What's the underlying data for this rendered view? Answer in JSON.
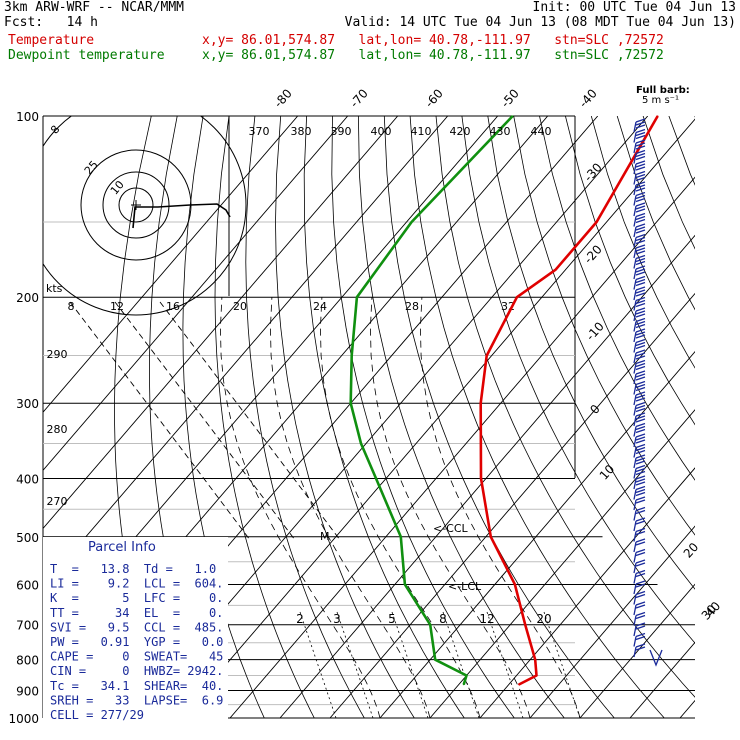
{
  "header": {
    "line1_left": "3km ARW-WRF -- NCAR/MMM",
    "line1_right": "Init: 00 UTC Tue 04 Jun 13",
    "line2_left": "Fcst:   14 h",
    "line2_right": "Valid: 14 UTC Tue 04 Jun 13 (08 MDT Tue 04 Jun 13)",
    "temp_label": "Temperature",
    "temp_info": "x,y= 86.01,574.87   lat,lon= 40.78,-111.97   stn=SLC ,72572",
    "dew_label": "Dewpoint temperature",
    "dew_info": "x,y= 86.01,574.87   lat,lon= 40.78,-111.97   stn=SLC ,72572"
  },
  "barb_legend": {
    "line1": "Full barb:",
    "line2": "5 m s⁻¹"
  },
  "parcel_info": {
    "title": "Parcel Info",
    "rows": [
      "T  =   13.8  Td =   1.0",
      "LI =    9.2  LCL =  604.",
      "K  =      5  LFC =    0.",
      "TT =     34  EL  =    0.",
      "SVI =   9.5  CCL =  485.",
      "PW =   0.91  YGP =   0.0",
      "CAPE =    0  SWEAT=   45",
      "CIN =     0  HWBZ= 2942.",
      "Tc =   34.1  SHEAR=  40.",
      "SREH =   33  LAPSE=  6.9",
      "CELL = 277/29"
    ]
  },
  "annotations": {
    "lcl1": "<-CCL",
    "lcl2": "<-LCL",
    "m_marker": "M",
    "hodo_kts": "kts"
  },
  "colors": {
    "temperature": "#e00000",
    "dewpoint": "#109010",
    "wind": "#1a2a9a"
  },
  "chart_data": {
    "type": "line",
    "subtype": "skew-T log-P",
    "pressure_levels": [
      100,
      200,
      300,
      400,
      500,
      600,
      700,
      800,
      900,
      1000
    ],
    "isotherm_top_labels": [
      "-80",
      "-70",
      "-60",
      "-50",
      "-40"
    ],
    "isotherm_right_labels": [
      "-30",
      "-20",
      "-10",
      "0",
      "10",
      "20",
      "30",
      "40"
    ],
    "theta_labels": [
      "370",
      "380",
      "390",
      "400",
      "410",
      "420",
      "430",
      "440"
    ],
    "theta_left_labels": [
      "290",
      "280",
      "270"
    ],
    "mixing_ratio_labels": [
      "2",
      "3",
      "5",
      "8",
      "12",
      "20"
    ],
    "hodograph_ring_labels": [
      "8",
      "12",
      "16",
      "20",
      "24",
      "28",
      "32"
    ],
    "hodograph_circle_labels": [
      "25",
      "10",
      "8"
    ],
    "series": [
      {
        "name": "Temperature",
        "points": [
          [
            100,
            -58
          ],
          [
            150,
            -52
          ],
          [
            180,
            -52
          ],
          [
            200,
            -55
          ],
          [
            250,
            -51
          ],
          [
            300,
            -44
          ],
          [
            400,
            -31
          ],
          [
            500,
            -19
          ],
          [
            600,
            -6
          ],
          [
            700,
            3
          ],
          [
            800,
            11
          ],
          [
            850,
            14
          ],
          [
            880,
            12
          ]
        ]
      },
      {
        "name": "Dewpoint temperature",
        "points": [
          [
            100,
            -87
          ],
          [
            150,
            -89
          ],
          [
            200,
            -87
          ],
          [
            250,
            -78
          ],
          [
            300,
            -70
          ],
          [
            350,
            -61
          ],
          [
            400,
            -52
          ],
          [
            500,
            -37
          ],
          [
            600,
            -28
          ],
          [
            700,
            -16
          ],
          [
            800,
            -9
          ],
          [
            850,
            0
          ],
          [
            880,
            1
          ]
        ]
      }
    ]
  }
}
